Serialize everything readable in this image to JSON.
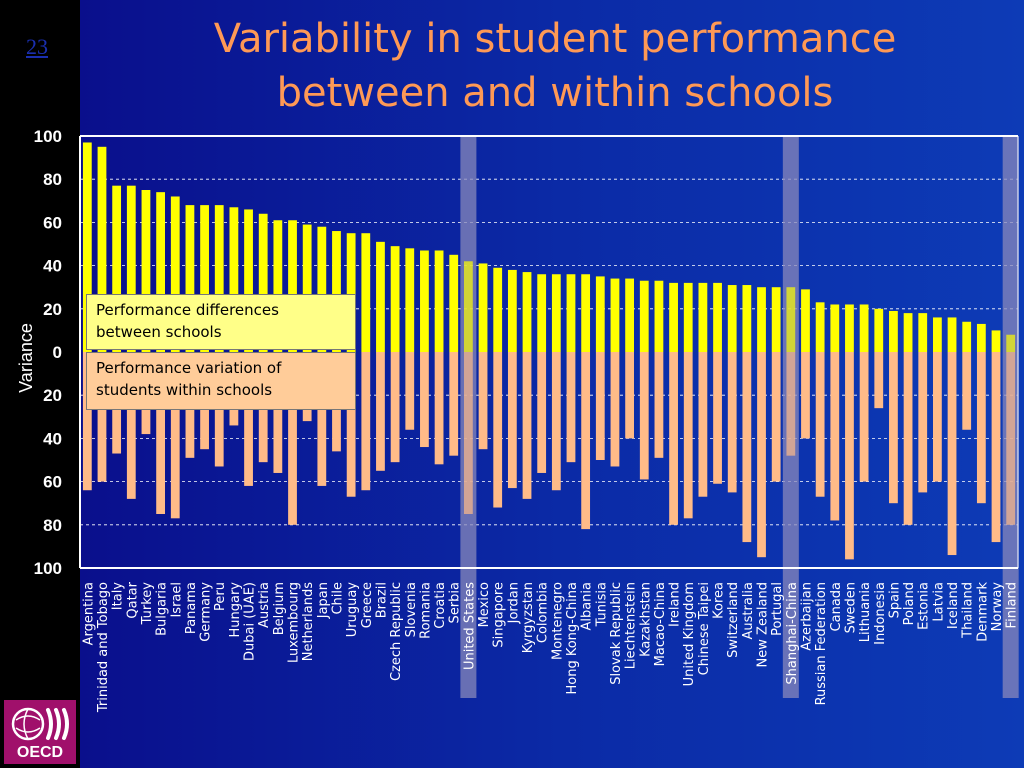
{
  "slide": {
    "number": "23",
    "title_line1": "Variability in student performance",
    "title_line2": "between and within schools"
  },
  "legend": {
    "between": "Performance differences between schools",
    "within": "Performance variation of students within schools"
  },
  "logo": {
    "text": "OECD"
  },
  "colors": {
    "between": "#ffff00",
    "within": "#ffbb88",
    "highlight": "#8888bb",
    "axis": "#ffffff"
  },
  "chart_data": {
    "type": "bar",
    "title": "",
    "ylabel": "Variance",
    "ylim": [
      -100,
      100
    ],
    "ytick_labels": [
      "100",
      "80",
      "60",
      "40",
      "20",
      "0",
      "20",
      "40",
      "60",
      "80",
      "100"
    ],
    "grid": true,
    "highlighted": [
      "United States",
      "Shanghai-China",
      "Finland"
    ],
    "categories": [
      "Argentina",
      "Trinidad and Tobago",
      "Italy",
      "Qatar",
      "Turkey",
      "Bulgaria",
      "Israel",
      "Panama",
      "Germany",
      "Peru",
      "Hungary",
      "Dubai (UAE)",
      "Austria",
      "Belgium",
      "Luxembourg",
      "Netherlands",
      "Japan",
      "Chile",
      "Uruguay",
      "Greece",
      "Brazil",
      "Czech Republic",
      "Slovenia",
      "Romania",
      "Croatia",
      "Serbia",
      "United States",
      "Mexico",
      "Singapore",
      "Jordan",
      "Kyrgyzstan",
      "Colombia",
      "Montenegro",
      "Hong Kong-China",
      "Albania",
      "Tunisia",
      "Slovak Republic",
      "Liechtenstein",
      "Kazakhstan",
      "Macao-China",
      "Ireland",
      "United Kingdom",
      "Chinese Taipei",
      "Korea",
      "Switzerland",
      "Australia",
      "New Zealand",
      "Portugal",
      "Shanghai-China",
      "Azerbaijan",
      "Russian Federation",
      "Canada",
      "Sweden",
      "Lithuania",
      "Indonesia",
      "Spain",
      "Poland",
      "Estonia",
      "Latvia",
      "Iceland",
      "Thailand",
      "Denmark",
      "Norway",
      "Finland"
    ],
    "series": [
      {
        "name": "Performance differences between schools",
        "values": [
          97,
          95,
          77,
          77,
          75,
          74,
          72,
          68,
          68,
          68,
          67,
          66,
          64,
          61,
          61,
          59,
          58,
          56,
          55,
          55,
          51,
          49,
          48,
          47,
          47,
          45,
          42,
          41,
          39,
          38,
          37,
          36,
          36,
          36,
          36,
          35,
          34,
          34,
          33,
          33,
          32,
          32,
          32,
          32,
          31,
          31,
          30,
          30,
          30,
          29,
          23,
          22,
          22,
          22,
          20,
          19,
          18,
          18,
          16,
          16,
          14,
          13,
          10,
          8
        ]
      },
      {
        "name": "Performance variation of students within schools",
        "values": [
          -64,
          -60,
          -47,
          -68,
          -38,
          -75,
          -77,
          -49,
          -45,
          -53,
          -34,
          -62,
          -51,
          -56,
          -80,
          -32,
          -62,
          -46,
          -67,
          -64,
          -55,
          -51,
          -36,
          -44,
          -52,
          -48,
          -75,
          -45,
          -72,
          -63,
          -68,
          -56,
          -64,
          -51,
          -82,
          -50,
          -53,
          -40,
          -59,
          -49,
          -80,
          -77,
          -67,
          -61,
          -65,
          -88,
          -95,
          -60,
          -48,
          -40,
          -67,
          -78,
          -96,
          -60,
          -26,
          -70,
          -80,
          -65,
          -60,
          -94,
          -36,
          -70,
          -88,
          -80
        ]
      }
    ]
  }
}
